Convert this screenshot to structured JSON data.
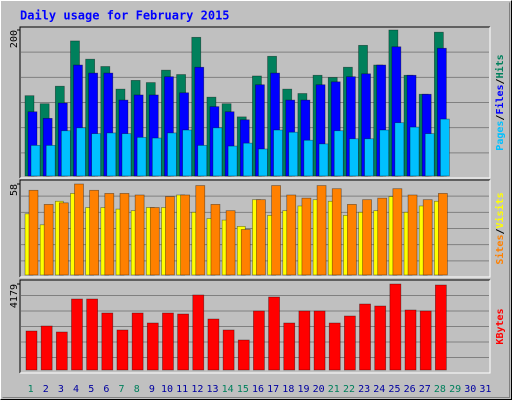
{
  "chart_data": {
    "type": "bar",
    "title": "Daily usage for February 2015",
    "categories": [
      "1",
      "2",
      "3",
      "4",
      "5",
      "6",
      "7",
      "8",
      "9",
      "10",
      "11",
      "12",
      "13",
      "14",
      "15",
      "16",
      "17",
      "18",
      "19",
      "20",
      "21",
      "22",
      "23",
      "24",
      "25",
      "26",
      "27",
      "28",
      "29",
      "30",
      "31"
    ],
    "category_colors": [
      "#00805c",
      "#0000a0",
      "#0000a0",
      "#0000a0",
      "#0000a0",
      "#0000a0",
      "#00805c",
      "#00805c",
      "#0000a0",
      "#0000a0",
      "#0000a0",
      "#0000a0",
      "#0000a0",
      "#00805c",
      "#00805c",
      "#0000a0",
      "#0000a0",
      "#0000a0",
      "#0000a0",
      "#0000a0",
      "#00805c",
      "#00805c",
      "#0000a0",
      "#0000a0",
      "#0000a0",
      "#0000a0",
      "#0000a0",
      "#00805c",
      "#00805c",
      "#0000a0",
      "#0000a0"
    ],
    "separator": "/",
    "panels": [
      {
        "ylim": [
          0,
          200
        ],
        "yticks": [
          200
        ],
        "series": [
          {
            "name": "Hits",
            "color": "#00805c",
            "values": [
              110,
              99,
              123,
              185,
              160,
              150,
              119,
              131,
              128,
              145,
              139,
              190,
              108,
              99,
              81,
              137,
              164,
              119,
              113,
              138,
              135,
              149,
              179,
              152,
              200,
              138,
              112,
              197,
              null,
              null,
              null
            ]
          },
          {
            "name": "Files",
            "color": "#0000ff",
            "values": [
              88,
              79,
              100,
              152,
              141,
              141,
              104,
              111,
              111,
              136,
              114,
              149,
              95,
              88,
              77,
              125,
              141,
              104,
              104,
              125,
              129,
              136,
              140,
              152,
              177,
              138,
              112,
              175,
              null,
              null,
              null
            ]
          },
          {
            "name": "Pages",
            "color": "#00c0ff",
            "values": [
              42,
              42,
              62,
              66,
              58,
              59,
              58,
              53,
              52,
              59,
              63,
              42,
              66,
              41,
              45,
              37,
              63,
              60,
              49,
              44,
              62,
              51,
              51,
              63,
              73,
              67,
              58,
              78,
              null,
              null,
              null
            ]
          }
        ]
      },
      {
        "ylim": [
          0,
          58
        ],
        "yticks": [
          58
        ],
        "series": [
          {
            "name": "Visits",
            "color": "#ffff00",
            "values": [
              39,
              32,
              47,
              52,
              43,
              43,
              42,
              41,
              43,
              43,
              51,
              40,
              36,
              35,
              31,
              48,
              38,
              41,
              44,
              48,
              47,
              38,
              40,
              41,
              50,
              40,
              44,
              47,
              null,
              null,
              null
            ]
          },
          {
            "name": "Sites",
            "color": "#ff8000",
            "values": [
              54,
              45,
              46,
              58,
              54,
              52,
              52,
              51,
              43,
              50,
              51,
              57,
              45,
              41,
              29,
              48,
              57,
              51,
              49,
              57,
              55,
              45,
              48,
              49,
              55,
              51,
              48,
              52,
              null,
              null,
              null
            ]
          }
        ]
      },
      {
        "ylim": [
          0,
          4179
        ],
        "yticks": [
          4179
        ],
        "series": [
          {
            "name": "KBytes",
            "color": "#ff0000",
            "values": [
              1895,
              2138,
              1847,
              3450,
              3450,
              2770,
              1944,
              2770,
              2284,
              2770,
              2721,
              3645,
              2478,
              1944,
              1458,
              2867,
              3547,
              2284,
              2867,
              2867,
              2284,
              2624,
              3207,
              3110,
              4179,
              2916,
              2867,
              4130,
              null,
              null,
              null
            ]
          }
        ]
      }
    ]
  }
}
